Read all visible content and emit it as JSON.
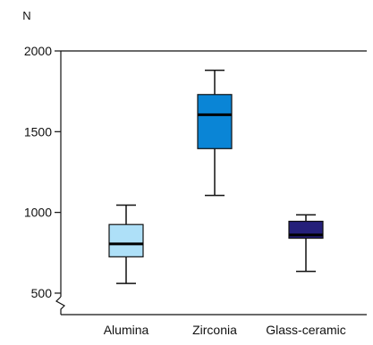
{
  "chart_data": {
    "type": "box",
    "title": "",
    "ylabel": "N",
    "xlabel": "",
    "ylim": [
      450,
      2000
    ],
    "yticks": [
      500,
      1000,
      1500,
      2000
    ],
    "ytick_labels": [
      "500",
      "1000",
      "1500",
      "2000"
    ],
    "axis_break": "y",
    "grid": false,
    "legend": "none",
    "categories": [
      "Alumina",
      "Zirconia",
      "Glass-ceramic"
    ],
    "boxes": [
      {
        "category": "Alumina",
        "min": 560,
        "q1": 725,
        "median": 805,
        "q3": 925,
        "max": 1045,
        "color": "#aee0f8"
      },
      {
        "category": "Zirconia",
        "min": 1105,
        "q1": 1395,
        "median": 1605,
        "q3": 1730,
        "max": 1880,
        "color": "#0a85d6"
      },
      {
        "category": "Glass-ceramic",
        "min": 635,
        "q1": 840,
        "median": 860,
        "q3": 945,
        "max": 985,
        "color": "#25207a"
      }
    ]
  }
}
